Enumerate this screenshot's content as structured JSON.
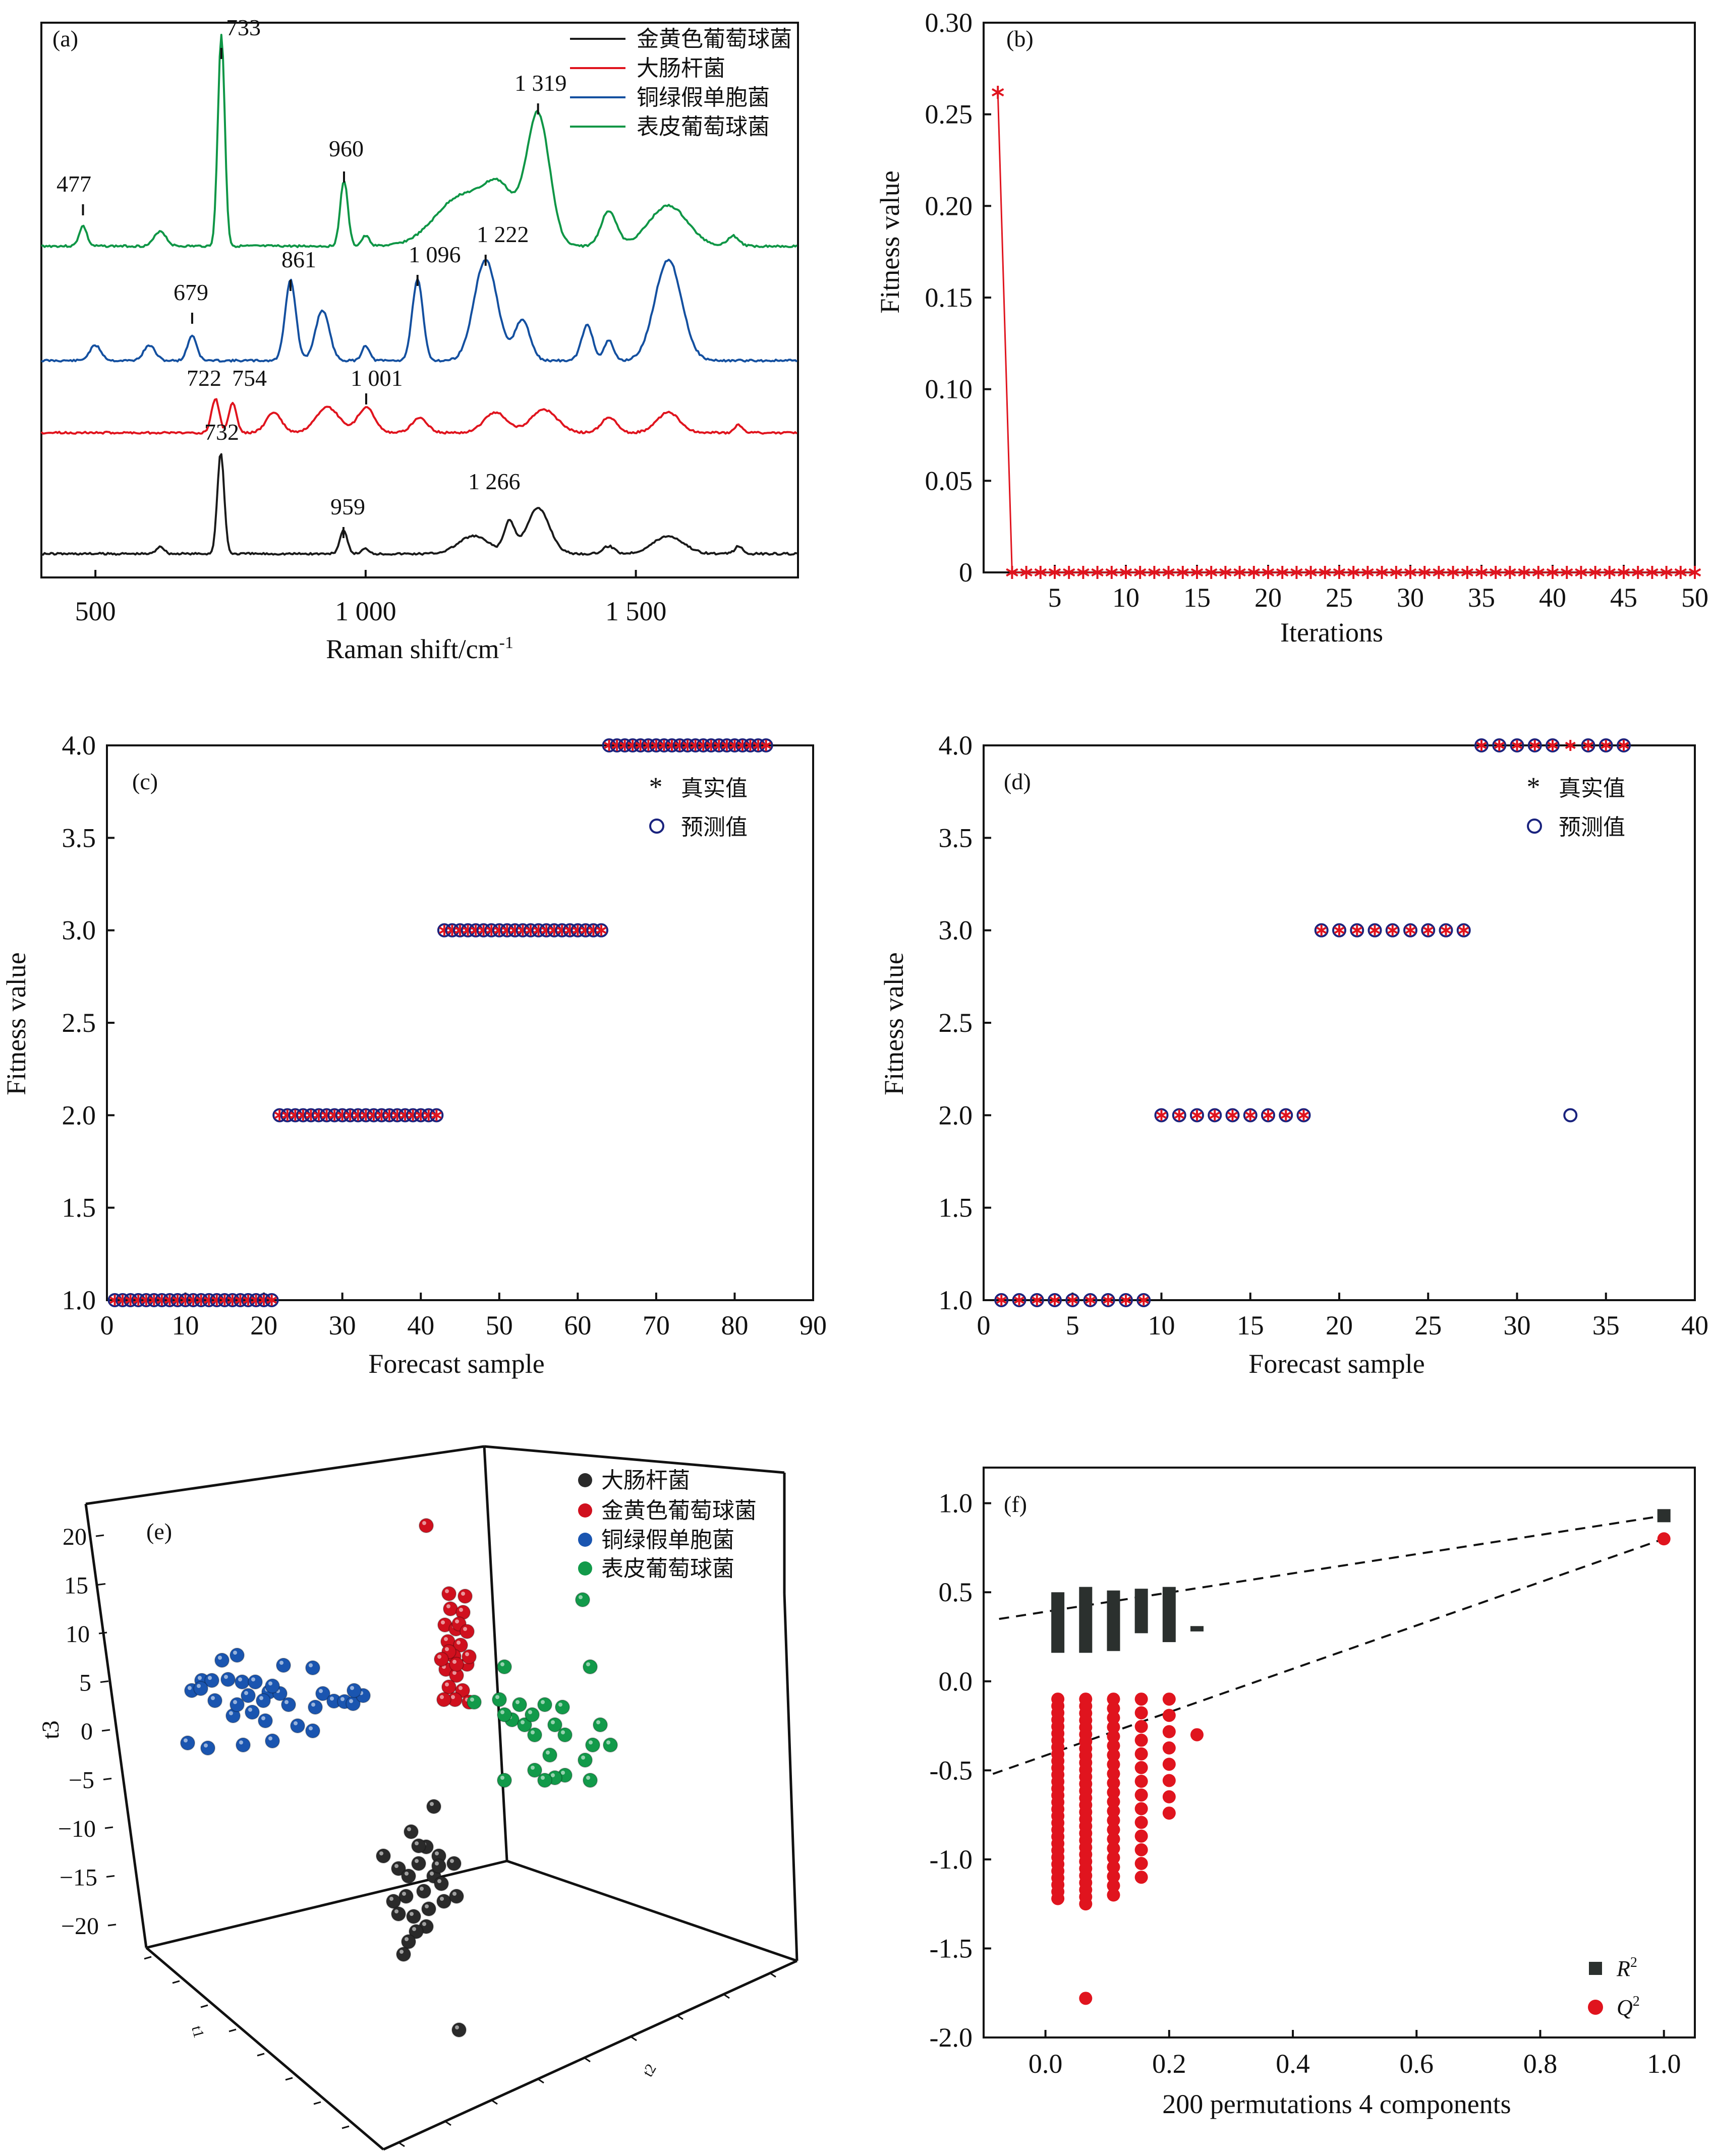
{
  "panels": {
    "a": {
      "label": "(a)",
      "xlabel": "Raman shift/cm",
      "xlabel_sup": "-1",
      "xticks": [
        "500",
        "1 000",
        "1 500"
      ],
      "legend": [
        "金黄色葡萄球菌",
        "大肠杆菌",
        "铜绿假单胞菌",
        "表皮葡萄球菌"
      ],
      "colors": [
        "#1a1a1a",
        "#e0141e",
        "#1450a0",
        "#0f9646"
      ],
      "annotations": {
        "green": [
          "477",
          "733",
          "960",
          "1 319"
        ],
        "blue": [
          "679",
          "861",
          "1 096",
          "1 222"
        ],
        "red": [
          "722",
          "754",
          "1 001"
        ],
        "black": [
          "732",
          "959",
          "1 266"
        ]
      }
    },
    "b": {
      "label": "(b)",
      "xlabel": "Iterations",
      "ylabel": "Fitness value",
      "yticks": [
        "0",
        "0.05",
        "0.10",
        "0.15",
        "0.20",
        "0.25",
        "0.30"
      ],
      "xticks": [
        "5",
        "10",
        "15",
        "20",
        "25",
        "30",
        "35",
        "40",
        "45",
        "50"
      ]
    },
    "c": {
      "label": "(c)",
      "xlabel": "Forecast sample",
      "ylabel": "Fitness value",
      "yticks": [
        "1.0",
        "1.5",
        "2.0",
        "2.5",
        "3.0",
        "3.5",
        "4.0"
      ],
      "xticks": [
        "0",
        "10",
        "20",
        "30",
        "40",
        "50",
        "60",
        "70",
        "80",
        "90"
      ],
      "legend": [
        "真实值",
        "预测值"
      ]
    },
    "d": {
      "label": "(d)",
      "xlabel": "Forecast sample",
      "ylabel": "Fitness value",
      "yticks": [
        "1.0",
        "1.5",
        "2.0",
        "2.5",
        "3.0",
        "3.5",
        "4.0"
      ],
      "xticks": [
        "0",
        "5",
        "10",
        "15",
        "20",
        "25",
        "30",
        "35",
        "40"
      ],
      "legend": [
        "真实值",
        "预测值"
      ]
    },
    "e": {
      "label": "(e)",
      "zlabel": "t3",
      "xlabel": "t1",
      "ylabel": "t2",
      "zticks": [
        "20",
        "15",
        "10",
        "5",
        "0",
        "−5",
        "−10",
        "−15",
        "−20"
      ],
      "legend": [
        "大肠杆菌",
        "金黄色葡萄球菌",
        "铜绿假单胞菌",
        "表皮葡萄球菌"
      ],
      "colors": [
        "#2a2a2a",
        "#d0101e",
        "#1a55b0",
        "#129a4a"
      ]
    },
    "f": {
      "label": "(f)",
      "xlabel": "200 permutations 4 components",
      "yticks": [
        "1.0",
        "0.5",
        "0.0",
        "-0.5",
        "-1.0",
        "-1.5",
        "-2.0"
      ],
      "xticks": [
        "0.0",
        "0.2",
        "0.4",
        "0.6",
        "0.8",
        "1.0"
      ],
      "legend_r2": "R",
      "legend_q2": "Q",
      "sup": "2"
    }
  },
  "chart_data": [
    {
      "panel": "a",
      "type": "line",
      "xlim": [
        400,
        1800
      ],
      "series": [
        {
          "name": "表皮葡萄球菌",
          "peaks": [
            477,
            733,
            960,
            1319
          ]
        },
        {
          "name": "铜绿假单胞菌",
          "peaks": [
            679,
            861,
            1096,
            1222
          ]
        },
        {
          "name": "大肠杆菌",
          "peaks": [
            722,
            754,
            1001
          ]
        },
        {
          "name": "金黄色葡萄球菌",
          "peaks": [
            732,
            959,
            1266
          ]
        }
      ]
    },
    {
      "panel": "b",
      "type": "line",
      "xlim": [
        0,
        50
      ],
      "ylim": [
        0,
        0.3
      ],
      "x": [
        1,
        2,
        3,
        4,
        5,
        6,
        7,
        8,
        9,
        10,
        11,
        12,
        13,
        14,
        15,
        16,
        17,
        18,
        19,
        20,
        21,
        22,
        23,
        24,
        25,
        26,
        27,
        28,
        29,
        30,
        31,
        32,
        33,
        34,
        35,
        36,
        37,
        38,
        39,
        40,
        41,
        42,
        43,
        44,
        45,
        46,
        47,
        48,
        49,
        50
      ],
      "y": [
        0.262,
        0,
        0,
        0,
        0,
        0,
        0,
        0,
        0,
        0,
        0,
        0,
        0,
        0,
        0,
        0,
        0,
        0,
        0,
        0,
        0,
        0,
        0,
        0,
        0,
        0,
        0,
        0,
        0,
        0,
        0,
        0,
        0,
        0,
        0,
        0,
        0,
        0,
        0,
        0,
        0,
        0,
        0,
        0,
        0,
        0,
        0,
        0,
        0,
        0
      ]
    },
    {
      "panel": "c",
      "type": "scatter",
      "xlim": [
        0,
        90
      ],
      "ylim": [
        1,
        4
      ],
      "groups": [
        {
          "x_range": [
            1,
            21
          ],
          "true": 1,
          "predicted": 1
        },
        {
          "x_range": [
            22,
            42
          ],
          "true": 2,
          "predicted": 2
        },
        {
          "x_range": [
            43,
            63
          ],
          "true": 3,
          "predicted": 3
        },
        {
          "x_range": [
            64,
            84
          ],
          "true": 4,
          "predicted": 4
        }
      ]
    },
    {
      "panel": "d",
      "type": "scatter",
      "xlim": [
        0,
        40
      ],
      "ylim": [
        1,
        4
      ],
      "x": [
        1,
        2,
        3,
        4,
        5,
        6,
        7,
        8,
        9,
        10,
        11,
        12,
        13,
        14,
        15,
        16,
        17,
        18,
        19,
        20,
        21,
        22,
        23,
        24,
        25,
        26,
        27,
        28,
        29,
        30,
        31,
        32,
        33,
        34,
        35,
        36
      ],
      "true": [
        1,
        1,
        1,
        1,
        1,
        1,
        1,
        1,
        1,
        2,
        2,
        2,
        2,
        2,
        2,
        2,
        2,
        2,
        3,
        3,
        3,
        3,
        3,
        3,
        3,
        3,
        3,
        4,
        4,
        4,
        4,
        4,
        4,
        4,
        4,
        4
      ],
      "predicted": [
        1,
        1,
        1,
        1,
        1,
        1,
        1,
        1,
        1,
        2,
        2,
        2,
        2,
        2,
        2,
        2,
        2,
        2,
        3,
        3,
        3,
        3,
        3,
        3,
        3,
        3,
        3,
        4,
        4,
        4,
        4,
        4,
        2,
        4,
        4,
        4
      ]
    },
    {
      "panel": "e",
      "type": "scatter",
      "zlim": [
        -20,
        20
      ],
      "series": [
        {
          "name": "大肠杆菌",
          "t3_range": [
            -18,
            -3
          ]
        },
        {
          "name": "金黄色葡萄球菌",
          "t3_range": [
            4,
            18
          ]
        },
        {
          "name": "铜绿假单胞菌",
          "t3_range": [
            -5,
            7
          ]
        },
        {
          "name": "表皮葡萄球菌",
          "t3_range": [
            -6,
            12
          ]
        }
      ]
    },
    {
      "panel": "f",
      "type": "scatter",
      "xlim": [
        -0.1,
        1.05
      ],
      "ylim": [
        -2.0,
        1.2
      ],
      "series": [
        {
          "name": "R2",
          "intercept": 0.35,
          "end": [
            1.0,
            0.93
          ]
        },
        {
          "name": "Q2",
          "intercept": -0.52,
          "end": [
            1.0,
            0.8
          ]
        }
      ]
    }
  ]
}
